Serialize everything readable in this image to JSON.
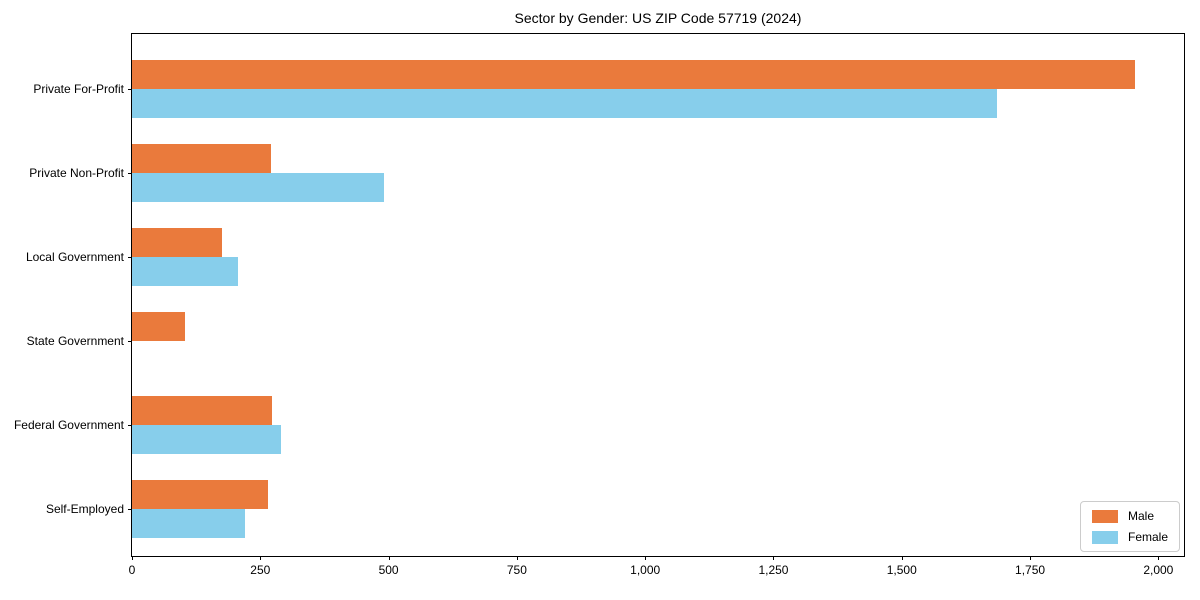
{
  "chart_data": {
    "type": "bar",
    "orientation": "horizontal",
    "title": "Sector by Gender: US ZIP Code 57719 (2024)",
    "categories": [
      "Private For-Profit",
      "Private Non-Profit",
      "Local Government",
      "State Government",
      "Federal Government",
      "Self-Employed"
    ],
    "series": [
      {
        "name": "Male",
        "color": "#EA7A3C",
        "values": [
          1955,
          270,
          175,
          103,
          272,
          265
        ]
      },
      {
        "name": "Female",
        "color": "#87CEEB",
        "values": [
          1685,
          492,
          206,
          0,
          290,
          220
        ]
      }
    ],
    "xlabel": "",
    "ylabel": "",
    "xlim": [
      0,
      2050
    ],
    "xticks": [
      0,
      250,
      500,
      750,
      1000,
      1250,
      1500,
      1750,
      2000
    ],
    "xtick_labels": [
      "0",
      "250",
      "500",
      "750",
      "1,000",
      "1,250",
      "1,500",
      "1,750",
      "2,000"
    ],
    "grid": false,
    "legend_position": "lower right",
    "frame": true,
    "colors": {
      "axis": "#000000",
      "legend_border": "#cccccc",
      "background": "#ffffff"
    }
  }
}
